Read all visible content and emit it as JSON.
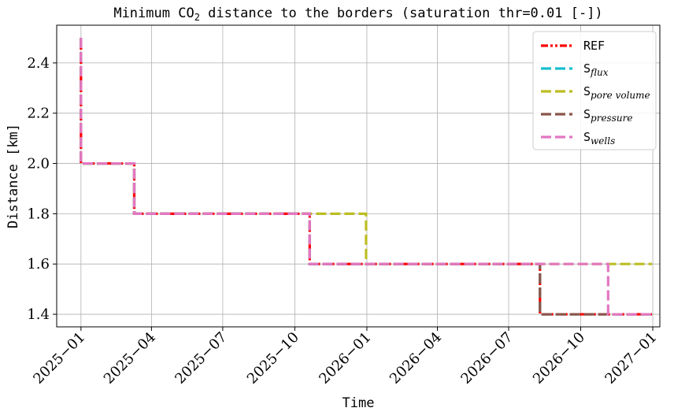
{
  "chart_data": {
    "type": "line",
    "step": true,
    "title_main": "Minimum CO",
    "title_sub": "2",
    "title_rest": " distance to the borders (saturation thr=0.01 [-])",
    "xlabel": "Time",
    "ylabel": "Distance [km]",
    "xlim": [
      "2024-12-01",
      "2027-01-10"
    ],
    "ylim": [
      1.35,
      2.55
    ],
    "yticks": [
      1.4,
      1.6,
      1.8,
      2.0,
      2.2,
      2.4
    ],
    "ytick_labels": [
      "1.4",
      "1.6",
      "1.8",
      "2.0",
      "2.2",
      "2.4"
    ],
    "xticks": [
      "2025-01-01",
      "2025-04-01",
      "2025-07-01",
      "2025-10-01",
      "2026-01-01",
      "2026-04-01",
      "2026-07-01",
      "2026-10-01",
      "2027-01-01"
    ],
    "xtick_labels": [
      "2025−01",
      "2025−04",
      "2025−07",
      "2025−10",
      "2026−01",
      "2026−04",
      "2026−07",
      "2026−10",
      "2027−01"
    ],
    "grid": true,
    "legend_position": "top-right",
    "series": [
      {
        "name": "REF",
        "label_parts": [
          "REF",
          ""
        ],
        "color": "#ff0000",
        "style": "dashdotdot",
        "points": [
          [
            "2025-01-01",
            2.5
          ],
          [
            "2025-01-01",
            2.0
          ],
          [
            "2025-03-10",
            2.0
          ],
          [
            "2025-03-10",
            1.8
          ],
          [
            "2025-10-20",
            1.8
          ],
          [
            "2025-10-20",
            1.6
          ],
          [
            "2026-08-10",
            1.6
          ],
          [
            "2026-08-10",
            1.4
          ],
          [
            "2026-12-31",
            1.4
          ]
        ]
      },
      {
        "name": "S flux",
        "label_parts": [
          "S",
          "flux"
        ],
        "color": "#17becf",
        "style": "dashed",
        "points": [
          [
            "2025-01-01",
            2.5
          ],
          [
            "2025-01-01",
            2.0
          ],
          [
            "2025-03-10",
            2.0
          ],
          [
            "2025-03-10",
            1.8
          ],
          [
            "2025-10-20",
            1.8
          ],
          [
            "2025-10-20",
            1.6
          ],
          [
            "2026-08-10",
            1.6
          ],
          [
            "2026-08-10",
            1.4
          ],
          [
            "2026-12-31",
            1.4
          ]
        ]
      },
      {
        "name": "S pore volume",
        "label_parts": [
          "S",
          "pore volume"
        ],
        "color": "#bcbd22",
        "style": "dashed",
        "points": [
          [
            "2025-01-01",
            2.5
          ],
          [
            "2025-01-01",
            2.0
          ],
          [
            "2025-03-10",
            2.0
          ],
          [
            "2025-03-10",
            1.8
          ],
          [
            "2025-12-31",
            1.8
          ],
          [
            "2025-12-31",
            1.6
          ],
          [
            "2026-12-31",
            1.6
          ]
        ]
      },
      {
        "name": "S pressure",
        "label_parts": [
          "S",
          "pressure"
        ],
        "color": "#8c564b",
        "style": "dashed",
        "points": [
          [
            "2025-01-01",
            2.5
          ],
          [
            "2025-01-01",
            2.0
          ],
          [
            "2025-03-10",
            2.0
          ],
          [
            "2025-03-10",
            1.8
          ],
          [
            "2025-10-20",
            1.8
          ],
          [
            "2025-10-20",
            1.6
          ],
          [
            "2026-08-10",
            1.6
          ],
          [
            "2026-08-10",
            1.4
          ],
          [
            "2026-12-31",
            1.4
          ]
        ]
      },
      {
        "name": "S wells",
        "label_parts": [
          "S",
          "wells"
        ],
        "color": "#e377c2",
        "style": "dashed",
        "points": [
          [
            "2025-01-01",
            2.5
          ],
          [
            "2025-01-01",
            2.0
          ],
          [
            "2025-03-10",
            2.0
          ],
          [
            "2025-03-10",
            1.8
          ],
          [
            "2025-10-20",
            1.8
          ],
          [
            "2025-10-20",
            1.6
          ],
          [
            "2026-11-05",
            1.6
          ],
          [
            "2026-11-05",
            1.4
          ],
          [
            "2026-12-31",
            1.4
          ]
        ]
      }
    ]
  }
}
